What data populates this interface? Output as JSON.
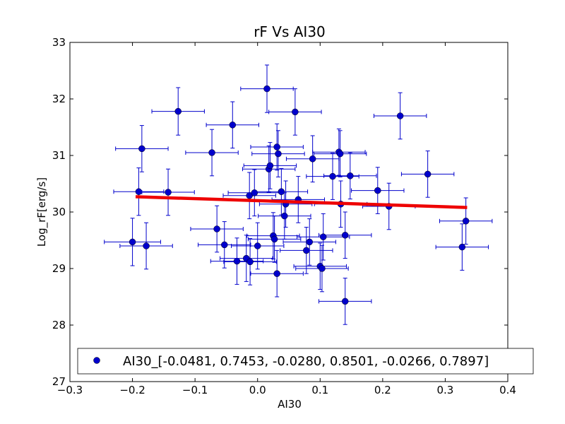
{
  "chart_data": {
    "type": "scatter",
    "title": "rF Vs AI30",
    "xlabel": "AI30",
    "ylabel": "Log_rF[erg/s]",
    "xlim": [
      -0.3,
      0.4
    ],
    "ylim": [
      27,
      33
    ],
    "xticks": [
      -0.3,
      -0.2,
      -0.1,
      0.0,
      0.1,
      0.2,
      0.3,
      0.4
    ],
    "xtick_labels": [
      "−0.3",
      "−0.2",
      "−0.1",
      "0.0",
      "0.1",
      "0.2",
      "0.3",
      "0.4"
    ],
    "yticks": [
      27,
      28,
      29,
      30,
      31,
      32,
      33
    ],
    "ytick_labels": [
      "27",
      "28",
      "29",
      "30",
      "31",
      "32",
      "33"
    ],
    "grid": false,
    "legend": {
      "position": "bottom",
      "label": "AI30_[-0.0481, 0.7453, -0.0280, 0.8501, -0.0266, 0.7897]"
    },
    "colors": {
      "points": "#0000cc",
      "fit_line": "#ee0000",
      "axes": "#000000"
    },
    "series": [
      {
        "name": "AI30",
        "points": [
          {
            "x": -0.2,
            "y": 29.47,
            "xerr": 0.045,
            "yerr": 0.42
          },
          {
            "x": -0.19,
            "y": 30.36,
            "xerr": 0.04,
            "yerr": 0.42
          },
          {
            "x": -0.185,
            "y": 31.12,
            "xerr": 0.042,
            "yerr": 0.41
          },
          {
            "x": -0.178,
            "y": 29.4,
            "xerr": 0.042,
            "yerr": 0.41
          },
          {
            "x": -0.143,
            "y": 30.35,
            "xerr": 0.042,
            "yerr": 0.41
          },
          {
            "x": -0.127,
            "y": 31.78,
            "xerr": 0.042,
            "yerr": 0.42
          },
          {
            "x": -0.073,
            "y": 31.05,
            "xerr": 0.042,
            "yerr": 0.41
          },
          {
            "x": -0.065,
            "y": 29.7,
            "xerr": 0.042,
            "yerr": 0.41
          },
          {
            "x": -0.053,
            "y": 29.42,
            "xerr": 0.042,
            "yerr": 0.41
          },
          {
            "x": -0.04,
            "y": 31.54,
            "xerr": 0.042,
            "yerr": 0.41
          },
          {
            "x": -0.033,
            "y": 29.13,
            "xerr": 0.042,
            "yerr": 0.41
          },
          {
            "x": -0.018,
            "y": 29.18,
            "xerr": 0.042,
            "yerr": 0.41
          },
          {
            "x": -0.013,
            "y": 30.29,
            "xerr": 0.042,
            "yerr": 0.41
          },
          {
            "x": -0.012,
            "y": 29.12,
            "xerr": 0.042,
            "yerr": 0.41
          },
          {
            "x": -0.005,
            "y": 30.34,
            "xerr": 0.042,
            "yerr": 0.41
          },
          {
            "x": 0.0,
            "y": 29.4,
            "xerr": 0.042,
            "yerr": 0.41
          },
          {
            "x": 0.015,
            "y": 32.18,
            "xerr": 0.042,
            "yerr": 0.42
          },
          {
            "x": 0.018,
            "y": 30.76,
            "xerr": 0.042,
            "yerr": 0.41
          },
          {
            "x": 0.02,
            "y": 30.82,
            "xerr": 0.042,
            "yerr": 0.41
          },
          {
            "x": 0.025,
            "y": 29.58,
            "xerr": 0.042,
            "yerr": 0.41
          },
          {
            "x": 0.027,
            "y": 29.52,
            "xerr": 0.042,
            "yerr": 0.41
          },
          {
            "x": 0.031,
            "y": 31.15,
            "xerr": 0.042,
            "yerr": 0.41
          },
          {
            "x": 0.031,
            "y": 28.91,
            "xerr": 0.042,
            "yerr": 0.41
          },
          {
            "x": 0.033,
            "y": 31.03,
            "xerr": 0.042,
            "yerr": 0.41
          },
          {
            "x": 0.038,
            "y": 30.36,
            "xerr": 0.042,
            "yerr": 0.41
          },
          {
            "x": 0.043,
            "y": 29.93,
            "xerr": 0.042,
            "yerr": 0.41
          },
          {
            "x": 0.045,
            "y": 30.14,
            "xerr": 0.042,
            "yerr": 0.41
          },
          {
            "x": 0.06,
            "y": 31.77,
            "xerr": 0.042,
            "yerr": 0.41
          },
          {
            "x": 0.065,
            "y": 30.22,
            "xerr": 0.042,
            "yerr": 0.41
          },
          {
            "x": 0.078,
            "y": 29.32,
            "xerr": 0.042,
            "yerr": 0.41
          },
          {
            "x": 0.083,
            "y": 29.47,
            "xerr": 0.042,
            "yerr": 0.41
          },
          {
            "x": 0.088,
            "y": 30.94,
            "xerr": 0.042,
            "yerr": 0.41
          },
          {
            "x": 0.1,
            "y": 29.04,
            "xerr": 0.042,
            "yerr": 0.41
          },
          {
            "x": 0.103,
            "y": 29.0,
            "xerr": 0.042,
            "yerr": 0.41
          },
          {
            "x": 0.105,
            "y": 29.56,
            "xerr": 0.042,
            "yerr": 0.41
          },
          {
            "x": 0.12,
            "y": 30.63,
            "xerr": 0.042,
            "yerr": 0.41
          },
          {
            "x": 0.13,
            "y": 31.06,
            "xerr": 0.042,
            "yerr": 0.41
          },
          {
            "x": 0.132,
            "y": 31.03,
            "xerr": 0.042,
            "yerr": 0.41
          },
          {
            "x": 0.133,
            "y": 30.14,
            "xerr": 0.042,
            "yerr": 0.41
          },
          {
            "x": 0.14,
            "y": 29.59,
            "xerr": 0.042,
            "yerr": 0.41
          },
          {
            "x": 0.14,
            "y": 28.42,
            "xerr": 0.042,
            "yerr": 0.41
          },
          {
            "x": 0.148,
            "y": 30.64,
            "xerr": 0.042,
            "yerr": 0.41
          },
          {
            "x": 0.192,
            "y": 30.38,
            "xerr": 0.042,
            "yerr": 0.41
          },
          {
            "x": 0.21,
            "y": 30.1,
            "xerr": 0.042,
            "yerr": 0.41
          },
          {
            "x": 0.228,
            "y": 31.7,
            "xerr": 0.042,
            "yerr": 0.41
          },
          {
            "x": 0.272,
            "y": 30.67,
            "xerr": 0.042,
            "yerr": 0.41
          },
          {
            "x": 0.327,
            "y": 29.38,
            "xerr": 0.042,
            "yerr": 0.41
          },
          {
            "x": 0.333,
            "y": 29.84,
            "xerr": 0.042,
            "yerr": 0.41
          }
        ]
      }
    ],
    "fit_line": {
      "x": [
        -0.195,
        0.335
      ],
      "y": [
        30.27,
        30.08
      ]
    }
  }
}
